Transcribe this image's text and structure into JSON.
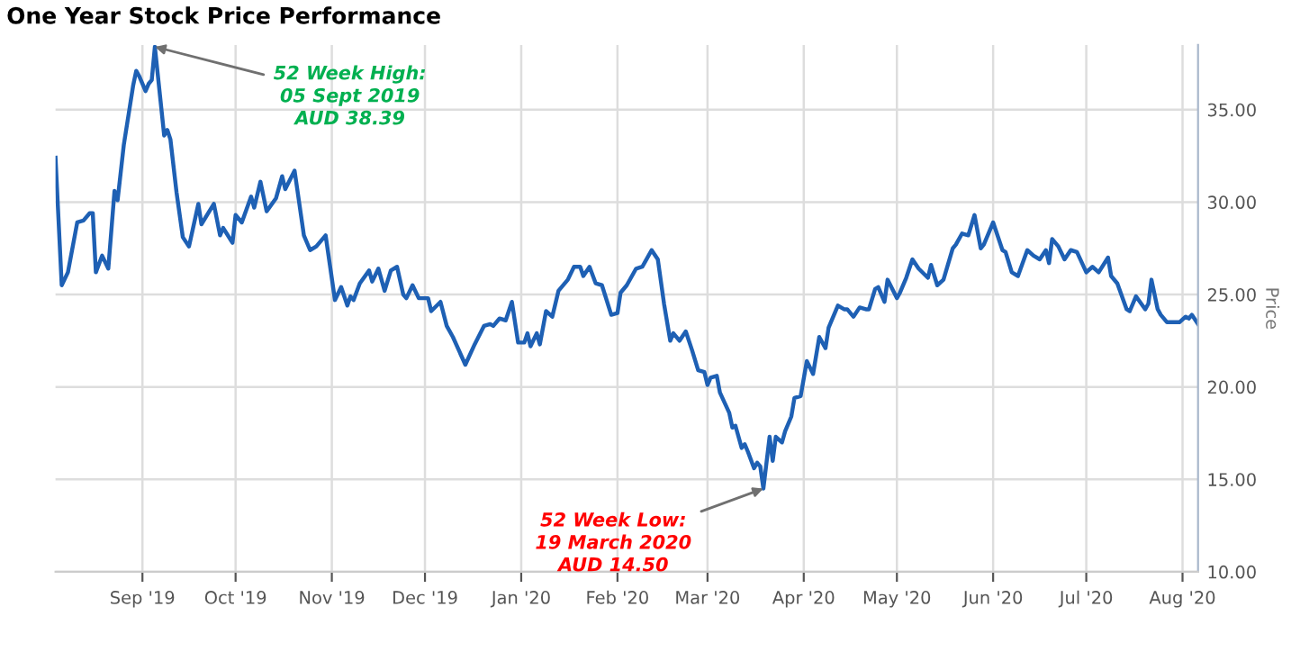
{
  "chart_data": {
    "type": "line",
    "title": "One Year Stock Price Performance",
    "ylabel": "Price",
    "annotations": [
      {
        "text": "52 Week High:\n05 Sept 2019\nAUD 38.39",
        "x": "2019-09-05",
        "y": 38.4
      },
      {
        "text": "52 Week Low:\n19 March 2020\nAUD 14.50",
        "x": "2020-03-19",
        "y": 14.5
      }
    ],
    "x": [
      "2019-08-04",
      "2019-08-06",
      "2019-08-08",
      "2019-08-11",
      "2019-08-13",
      "2019-08-15",
      "2019-08-16",
      "2019-08-17",
      "2019-08-19",
      "2019-08-21",
      "2019-08-23",
      "2019-08-24",
      "2019-08-26",
      "2019-08-29",
      "2019-08-30",
      "2019-08-31",
      "2019-09-02",
      "2019-09-03",
      "2019-09-04",
      "2019-09-05",
      "2019-09-08",
      "2019-09-09",
      "2019-09-10",
      "2019-09-12",
      "2019-09-14",
      "2019-09-16",
      "2019-09-19",
      "2019-09-20",
      "2019-09-24",
      "2019-09-26",
      "2019-09-27",
      "2019-09-30",
      "2019-10-01",
      "2019-10-03",
      "2019-10-06",
      "2019-10-07",
      "2019-10-09",
      "2019-10-11",
      "2019-10-14",
      "2019-10-16",
      "2019-10-17",
      "2019-10-20",
      "2019-10-23",
      "2019-10-25",
      "2019-10-27",
      "2019-10-30",
      "2019-11-02",
      "2019-11-04",
      "2019-11-06",
      "2019-11-07",
      "2019-11-08",
      "2019-11-10",
      "2019-11-13",
      "2019-11-14",
      "2019-11-16",
      "2019-11-18",
      "2019-11-20",
      "2019-11-22",
      "2019-11-24",
      "2019-11-25",
      "2019-11-27",
      "2019-11-29",
      "2019-12-02",
      "2019-12-03",
      "2019-12-06",
      "2019-12-08",
      "2019-12-10",
      "2019-12-14",
      "2019-12-17",
      "2019-12-20",
      "2019-12-22",
      "2019-12-23",
      "2019-12-25",
      "2019-12-27",
      "2019-12-29",
      "2019-12-31",
      "2020-01-02",
      "2020-01-03",
      "2020-01-04",
      "2020-01-06",
      "2020-01-07",
      "2020-01-09",
      "2020-01-11",
      "2020-01-13",
      "2020-01-16",
      "2020-01-18",
      "2020-01-20",
      "2020-01-21",
      "2020-01-23",
      "2020-01-25",
      "2020-01-27",
      "2020-01-30",
      "2020-02-01",
      "2020-02-02",
      "2020-02-04",
      "2020-02-07",
      "2020-02-09",
      "2020-02-10",
      "2020-02-12",
      "2020-02-14",
      "2020-02-16",
      "2020-02-18",
      "2020-02-19",
      "2020-02-21",
      "2020-02-23",
      "2020-02-25",
      "2020-02-27",
      "2020-02-29",
      "2020-03-01",
      "2020-03-02",
      "2020-03-04",
      "2020-03-05",
      "2020-03-08",
      "2020-03-09",
      "2020-03-10",
      "2020-03-12",
      "2020-03-13",
      "2020-03-14",
      "2020-03-16",
      "2020-03-17",
      "2020-03-18",
      "2020-03-19",
      "2020-03-21",
      "2020-03-22",
      "2020-03-23",
      "2020-03-25",
      "2020-03-26",
      "2020-03-28",
      "2020-03-29",
      "2020-03-31",
      "2020-04-02",
      "2020-04-04",
      "2020-04-06",
      "2020-04-08",
      "2020-04-09",
      "2020-04-12",
      "2020-04-14",
      "2020-04-15",
      "2020-04-17",
      "2020-04-19",
      "2020-04-21",
      "2020-04-22",
      "2020-04-24",
      "2020-04-25",
      "2020-04-27",
      "2020-04-28",
      "2020-05-01",
      "2020-05-02",
      "2020-05-04",
      "2020-05-06",
      "2020-05-08",
      "2020-05-11",
      "2020-05-12",
      "2020-05-14",
      "2020-05-16",
      "2020-05-19",
      "2020-05-20",
      "2020-05-22",
      "2020-05-24",
      "2020-05-26",
      "2020-05-28",
      "2020-05-29",
      "2020-06-01",
      "2020-06-04",
      "2020-06-05",
      "2020-06-07",
      "2020-06-09",
      "2020-06-12",
      "2020-06-14",
      "2020-06-16",
      "2020-06-18",
      "2020-06-19",
      "2020-06-20",
      "2020-06-22",
      "2020-06-24",
      "2020-06-26",
      "2020-06-28",
      "2020-07-01",
      "2020-07-03",
      "2020-07-05",
      "2020-07-08",
      "2020-07-09",
      "2020-07-11",
      "2020-07-14",
      "2020-07-15",
      "2020-07-17",
      "2020-07-20",
      "2020-07-21",
      "2020-07-22",
      "2020-07-24",
      "2020-07-25",
      "2020-07-27",
      "2020-07-29",
      "2020-07-31",
      "2020-08-02",
      "2020-08-03",
      "2020-08-04",
      "2020-08-06"
    ],
    "series": [
      {
        "color": "#1e60b4",
        "values": [
          32.4,
          25.5,
          26.2,
          28.9,
          29.0,
          29.4,
          29.4,
          26.2,
          27.1,
          26.4,
          30.6,
          30.1,
          33.1,
          36.3,
          37.1,
          36.8,
          36.0,
          36.4,
          36.6,
          38.4,
          33.6,
          33.9,
          33.4,
          30.5,
          28.1,
          27.6,
          29.9,
          28.8,
          29.9,
          28.2,
          28.6,
          27.8,
          29.3,
          28.9,
          30.3,
          29.7,
          31.1,
          29.5,
          30.2,
          31.4,
          30.7,
          31.7,
          28.2,
          27.4,
          27.6,
          28.2,
          24.7,
          25.4,
          24.4,
          24.9,
          24.7,
          25.6,
          26.3,
          25.7,
          26.4,
          25.2,
          26.3,
          26.5,
          25.0,
          24.8,
          25.5,
          24.8,
          24.8,
          24.1,
          24.6,
          23.3,
          22.7,
          21.2,
          22.3,
          23.3,
          23.4,
          23.3,
          23.7,
          23.6,
          24.6,
          22.4,
          22.4,
          22.9,
          22.2,
          22.9,
          22.3,
          24.1,
          23.8,
          25.2,
          25.8,
          26.5,
          26.5,
          26.0,
          26.5,
          25.6,
          25.5,
          23.9,
          24.0,
          25.1,
          25.5,
          26.4,
          26.5,
          26.8,
          27.4,
          26.9,
          24.5,
          22.5,
          22.9,
          22.5,
          23.0,
          22.0,
          20.9,
          20.8,
          20.1,
          20.5,
          20.6,
          19.7,
          18.6,
          17.8,
          17.9,
          16.7,
          16.9,
          16.5,
          15.6,
          15.9,
          15.7,
          14.5,
          17.3,
          16.0,
          17.3,
          17.0,
          17.6,
          18.4,
          19.4,
          19.5,
          21.4,
          20.7,
          22.7,
          22.1,
          23.2,
          24.4,
          24.2,
          24.2,
          23.8,
          24.3,
          24.2,
          24.2,
          25.3,
          25.4,
          24.6,
          25.8,
          24.8,
          25.1,
          25.9,
          26.9,
          26.4,
          25.9,
          26.6,
          25.5,
          25.8,
          27.5,
          27.7,
          28.3,
          28.2,
          29.3,
          27.5,
          27.7,
          28.9,
          27.4,
          27.3,
          26.2,
          26.0,
          27.4,
          27.1,
          26.9,
          27.4,
          26.7,
          28.0,
          27.6,
          26.9,
          27.4,
          27.3,
          26.2,
          26.5,
          26.2,
          27.0,
          26.0,
          25.6,
          24.2,
          24.1,
          24.9,
          24.2,
          24.5,
          25.8,
          24.2,
          23.9,
          23.5,
          23.5,
          23.5,
          23.8,
          23.7,
          23.9,
          23.4
        ]
      }
    ],
    "xlim": [
      "2019-08-04",
      "2020-08-06"
    ],
    "xticks": [
      {
        "value": "2019-09-01",
        "label": "Sep '19"
      },
      {
        "value": "2019-10-01",
        "label": "Oct '19"
      },
      {
        "value": "2019-11-01",
        "label": "Nov '19"
      },
      {
        "value": "2019-12-01",
        "label": "Dec '19"
      },
      {
        "value": "2020-01-01",
        "label": "Jan '20"
      },
      {
        "value": "2020-02-01",
        "label": "Feb '20"
      },
      {
        "value": "2020-03-01",
        "label": "Mar '20"
      },
      {
        "value": "2020-04-01",
        "label": "Apr '20"
      },
      {
        "value": "2020-05-01",
        "label": "May '20"
      },
      {
        "value": "2020-06-01",
        "label": "Jun '20"
      },
      {
        "value": "2020-07-01",
        "label": "Jul '20"
      },
      {
        "value": "2020-08-01",
        "label": "Aug '20"
      }
    ],
    "ylim": [
      10,
      38.5
    ],
    "yticks": [
      {
        "value": 10,
        "label": "10.00"
      },
      {
        "value": 15,
        "label": "15.00"
      },
      {
        "value": 20,
        "label": "20.00"
      },
      {
        "value": 25,
        "label": "25.00"
      },
      {
        "value": 30,
        "label": "30.00"
      },
      {
        "value": 35,
        "label": "35.00"
      }
    ],
    "grid": true,
    "line_style": "solid",
    "marker": "none"
  }
}
